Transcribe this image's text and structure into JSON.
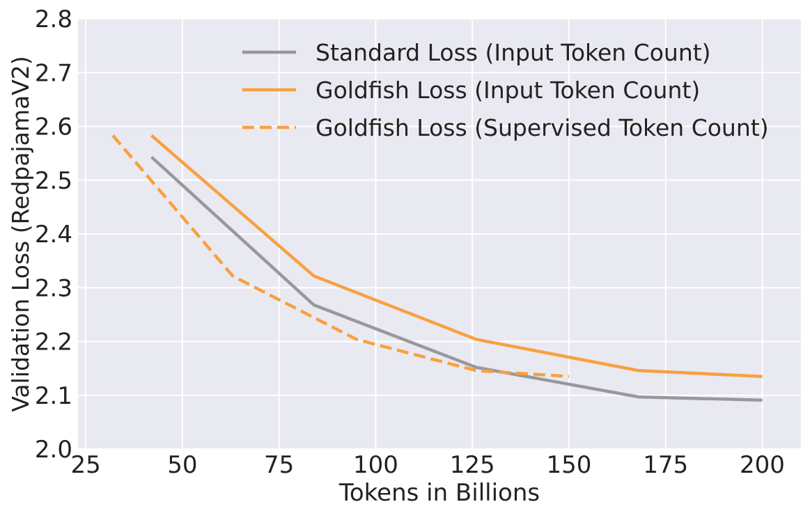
{
  "chart_data": {
    "type": "line",
    "title": "",
    "xlabel": "Tokens in Billions",
    "ylabel": "Validation Loss (RedpajamaV2)",
    "xlim": [
      23,
      210
    ],
    "ylim": [
      2.0,
      2.8
    ],
    "xticks": [
      25,
      50,
      75,
      100,
      125,
      150,
      175,
      200
    ],
    "yticks": [
      2.0,
      2.1,
      2.2,
      2.3,
      2.4,
      2.5,
      2.6,
      2.7,
      2.8
    ],
    "xtick_labels": [
      "25",
      "50",
      "75",
      "100",
      "125",
      "150",
      "175",
      "200"
    ],
    "ytick_labels": [
      "2.0",
      "2.1",
      "2.2",
      "2.3",
      "2.4",
      "2.5",
      "2.6",
      "2.7",
      "2.8"
    ],
    "grid": true,
    "legend_position": "top-right",
    "background": "#e9e9f1",
    "series": [
      {
        "name": "Standard Loss (Input Token Count)",
        "color": "#98989c",
        "dash": "solid",
        "x": [
          42,
          84,
          126,
          168,
          200
        ],
        "y": [
          2.543,
          2.268,
          2.152,
          2.097,
          2.091
        ]
      },
      {
        "name": "Goldfish Loss (Input Token Count)",
        "color": "#f9a03f",
        "dash": "solid",
        "x": [
          42,
          84,
          126,
          168,
          200
        ],
        "y": [
          2.583,
          2.322,
          2.204,
          2.146,
          2.135
        ]
      },
      {
        "name": "Goldfish Loss (Supervised Token Count)",
        "color": "#f9a03f",
        "dash": "dashed",
        "x": [
          32,
          63,
          95,
          126,
          150
        ],
        "y": [
          2.583,
          2.322,
          2.204,
          2.146,
          2.135
        ]
      }
    ]
  }
}
